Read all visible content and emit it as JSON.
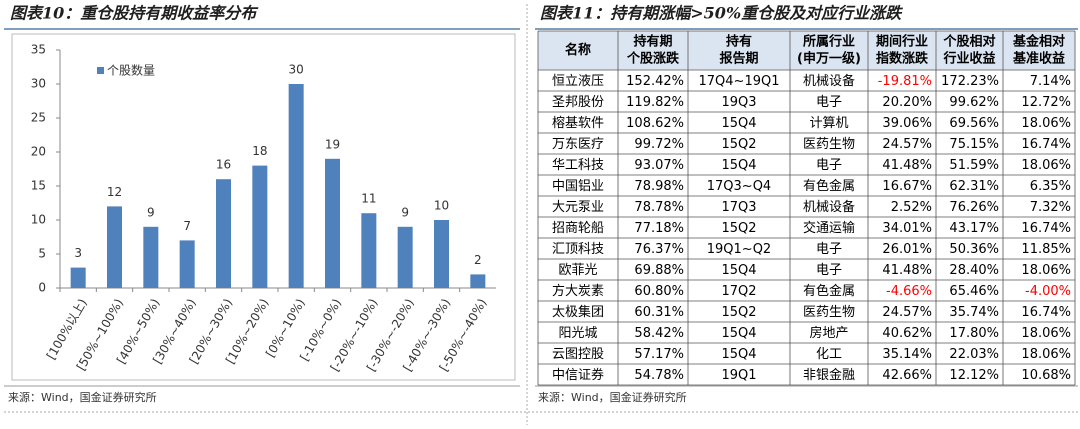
{
  "left": {
    "title": "图表10：重仓股持有期收益率分布",
    "source": "来源：Wind，国金证券研究所"
  },
  "chart_data": {
    "type": "bar",
    "categories": [
      "[100%以上)",
      "[50%~100%)",
      "[40%~50%)",
      "[30%~40%)",
      "[20%~30%)",
      "[10%~20%)",
      "[0%~10%)",
      "[-10%~0%)",
      "[-20%~-10%)",
      "[-30%~-20%)",
      "[-40%~-30%)",
      "[-50%~-40%)"
    ],
    "series": [
      {
        "name": "个股数量",
        "color": "#4f81bd",
        "values": [
          3,
          12,
          9,
          7,
          16,
          18,
          30,
          19,
          11,
          9,
          10,
          2
        ]
      }
    ],
    "ylim": [
      0,
      35
    ],
    "yticks": [
      0,
      5,
      10,
      15,
      20,
      25,
      30,
      35
    ],
    "grid": false,
    "legend": "top-left"
  },
  "right": {
    "title": "图表11：持有期涨幅>50%重仓股及对应行业涨跌",
    "source": "来源：Wind，国金证券研究所"
  },
  "table": {
    "negative_color": "#ff0000",
    "header": [
      [
        "名称"
      ],
      [
        "持有期",
        "个股涨跌"
      ],
      [
        "持有",
        "报告期"
      ],
      [
        "所属行业",
        "(申万一级)"
      ],
      [
        "期间行业",
        "指数涨跌"
      ],
      [
        "个股相对",
        "行业收益"
      ],
      [
        "基金相对",
        "基准收益"
      ]
    ],
    "rows": [
      [
        "恒立液压",
        "152.42%",
        "17Q4~19Q1",
        "机械设备",
        "-19.81%",
        "172.23%",
        "7.14%"
      ],
      [
        "圣邦股份",
        "119.82%",
        "19Q3",
        "电子",
        "20.20%",
        "99.62%",
        "12.72%"
      ],
      [
        "榕基软件",
        "108.62%",
        "15Q4",
        "计算机",
        "39.06%",
        "69.56%",
        "18.06%"
      ],
      [
        "万东医疗",
        "99.72%",
        "15Q2",
        "医药生物",
        "24.57%",
        "75.15%",
        "16.74%"
      ],
      [
        "华工科技",
        "93.07%",
        "15Q4",
        "电子",
        "41.48%",
        "51.59%",
        "18.06%"
      ],
      [
        "中国铝业",
        "78.98%",
        "17Q3~Q4",
        "有色金属",
        "16.67%",
        "62.31%",
        "6.35%"
      ],
      [
        "大元泵业",
        "78.78%",
        "17Q3",
        "机械设备",
        "2.52%",
        "76.26%",
        "7.32%"
      ],
      [
        "招商轮船",
        "77.18%",
        "15Q2",
        "交通运输",
        "34.01%",
        "43.17%",
        "16.74%"
      ],
      [
        "汇顶科技",
        "76.37%",
        "19Q1~Q2",
        "电子",
        "26.01%",
        "50.36%",
        "11.85%"
      ],
      [
        "欧菲光",
        "69.88%",
        "15Q4",
        "电子",
        "41.48%",
        "28.40%",
        "18.06%"
      ],
      [
        "方大炭素",
        "60.80%",
        "17Q2",
        "有色金属",
        "-4.66%",
        "65.46%",
        "-4.00%"
      ],
      [
        "太极集团",
        "60.31%",
        "15Q2",
        "医药生物",
        "24.57%",
        "35.74%",
        "16.74%"
      ],
      [
        "阳光城",
        "58.42%",
        "15Q4",
        "房地产",
        "40.62%",
        "17.80%",
        "18.06%"
      ],
      [
        "云图控股",
        "57.17%",
        "15Q4",
        "化工",
        "35.14%",
        "22.03%",
        "18.06%"
      ],
      [
        "中信证券",
        "54.78%",
        "19Q1",
        "非银金融",
        "42.66%",
        "12.12%",
        "10.68%"
      ]
    ]
  }
}
